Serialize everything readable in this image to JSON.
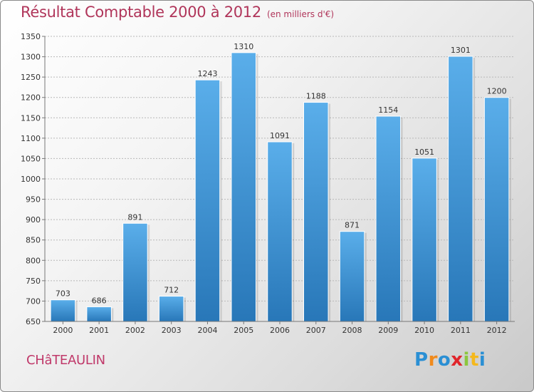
{
  "page": {
    "city": "CHâTEAULIN",
    "logo_letters": [
      {
        "ch": "P",
        "color": "#2a8fd4"
      },
      {
        "ch": "r",
        "color": "#f08a1c"
      },
      {
        "ch": "o",
        "color": "#2a8fd4"
      },
      {
        "ch": "x",
        "color": "#e0252b"
      },
      {
        "ch": "i",
        "color": "#8cc63e"
      },
      {
        "ch": "t",
        "color": "#f5b81c"
      },
      {
        "ch": "i",
        "color": "#2a8fd4"
      }
    ]
  },
  "chart_data": {
    "type": "bar",
    "title": "Résultat Comptable 2000 à 2012",
    "unit_label": "(en milliers d'€)",
    "xlabel": "",
    "ylabel": "",
    "categories": [
      "2000",
      "2001",
      "2002",
      "2003",
      "2004",
      "2005",
      "2006",
      "2007",
      "2008",
      "2009",
      "2010",
      "2011",
      "2012"
    ],
    "values": [
      703,
      686,
      891,
      712,
      1243,
      1310,
      1091,
      1188,
      871,
      1154,
      1051,
      1301,
      1200
    ],
    "ylim": [
      650,
      1350
    ],
    "yticks": [
      650,
      700,
      750,
      800,
      850,
      900,
      950,
      1000,
      1050,
      1100,
      1150,
      1200,
      1250,
      1300,
      1350
    ],
    "grid": true,
    "bar_color": "#4a9fdc",
    "title_color": "#b0355a"
  }
}
